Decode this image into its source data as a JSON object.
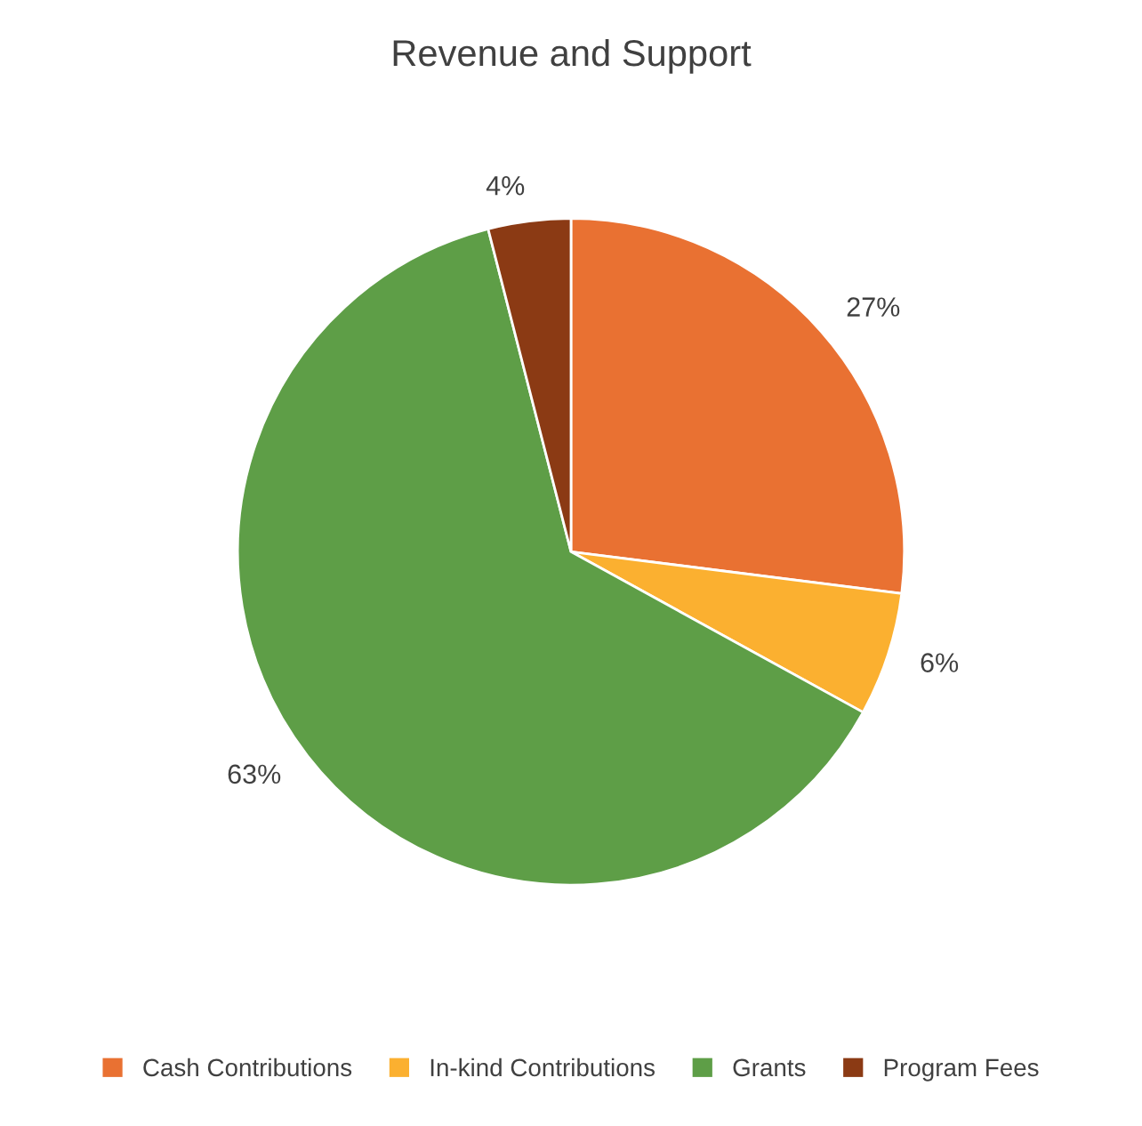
{
  "chart_data": {
    "type": "pie",
    "title": "Revenue and Support",
    "categories": [
      "Cash Contributions",
      "In-kind Contributions",
      "Grants",
      "Program Fees"
    ],
    "values": [
      27,
      6,
      63,
      4
    ],
    "colors": [
      "#e97132",
      "#fbb030",
      "#5e9e47",
      "#8b3a14"
    ],
    "value_labels": [
      "27%",
      "6%",
      "63%",
      "4%"
    ],
    "legend": "bottom"
  }
}
